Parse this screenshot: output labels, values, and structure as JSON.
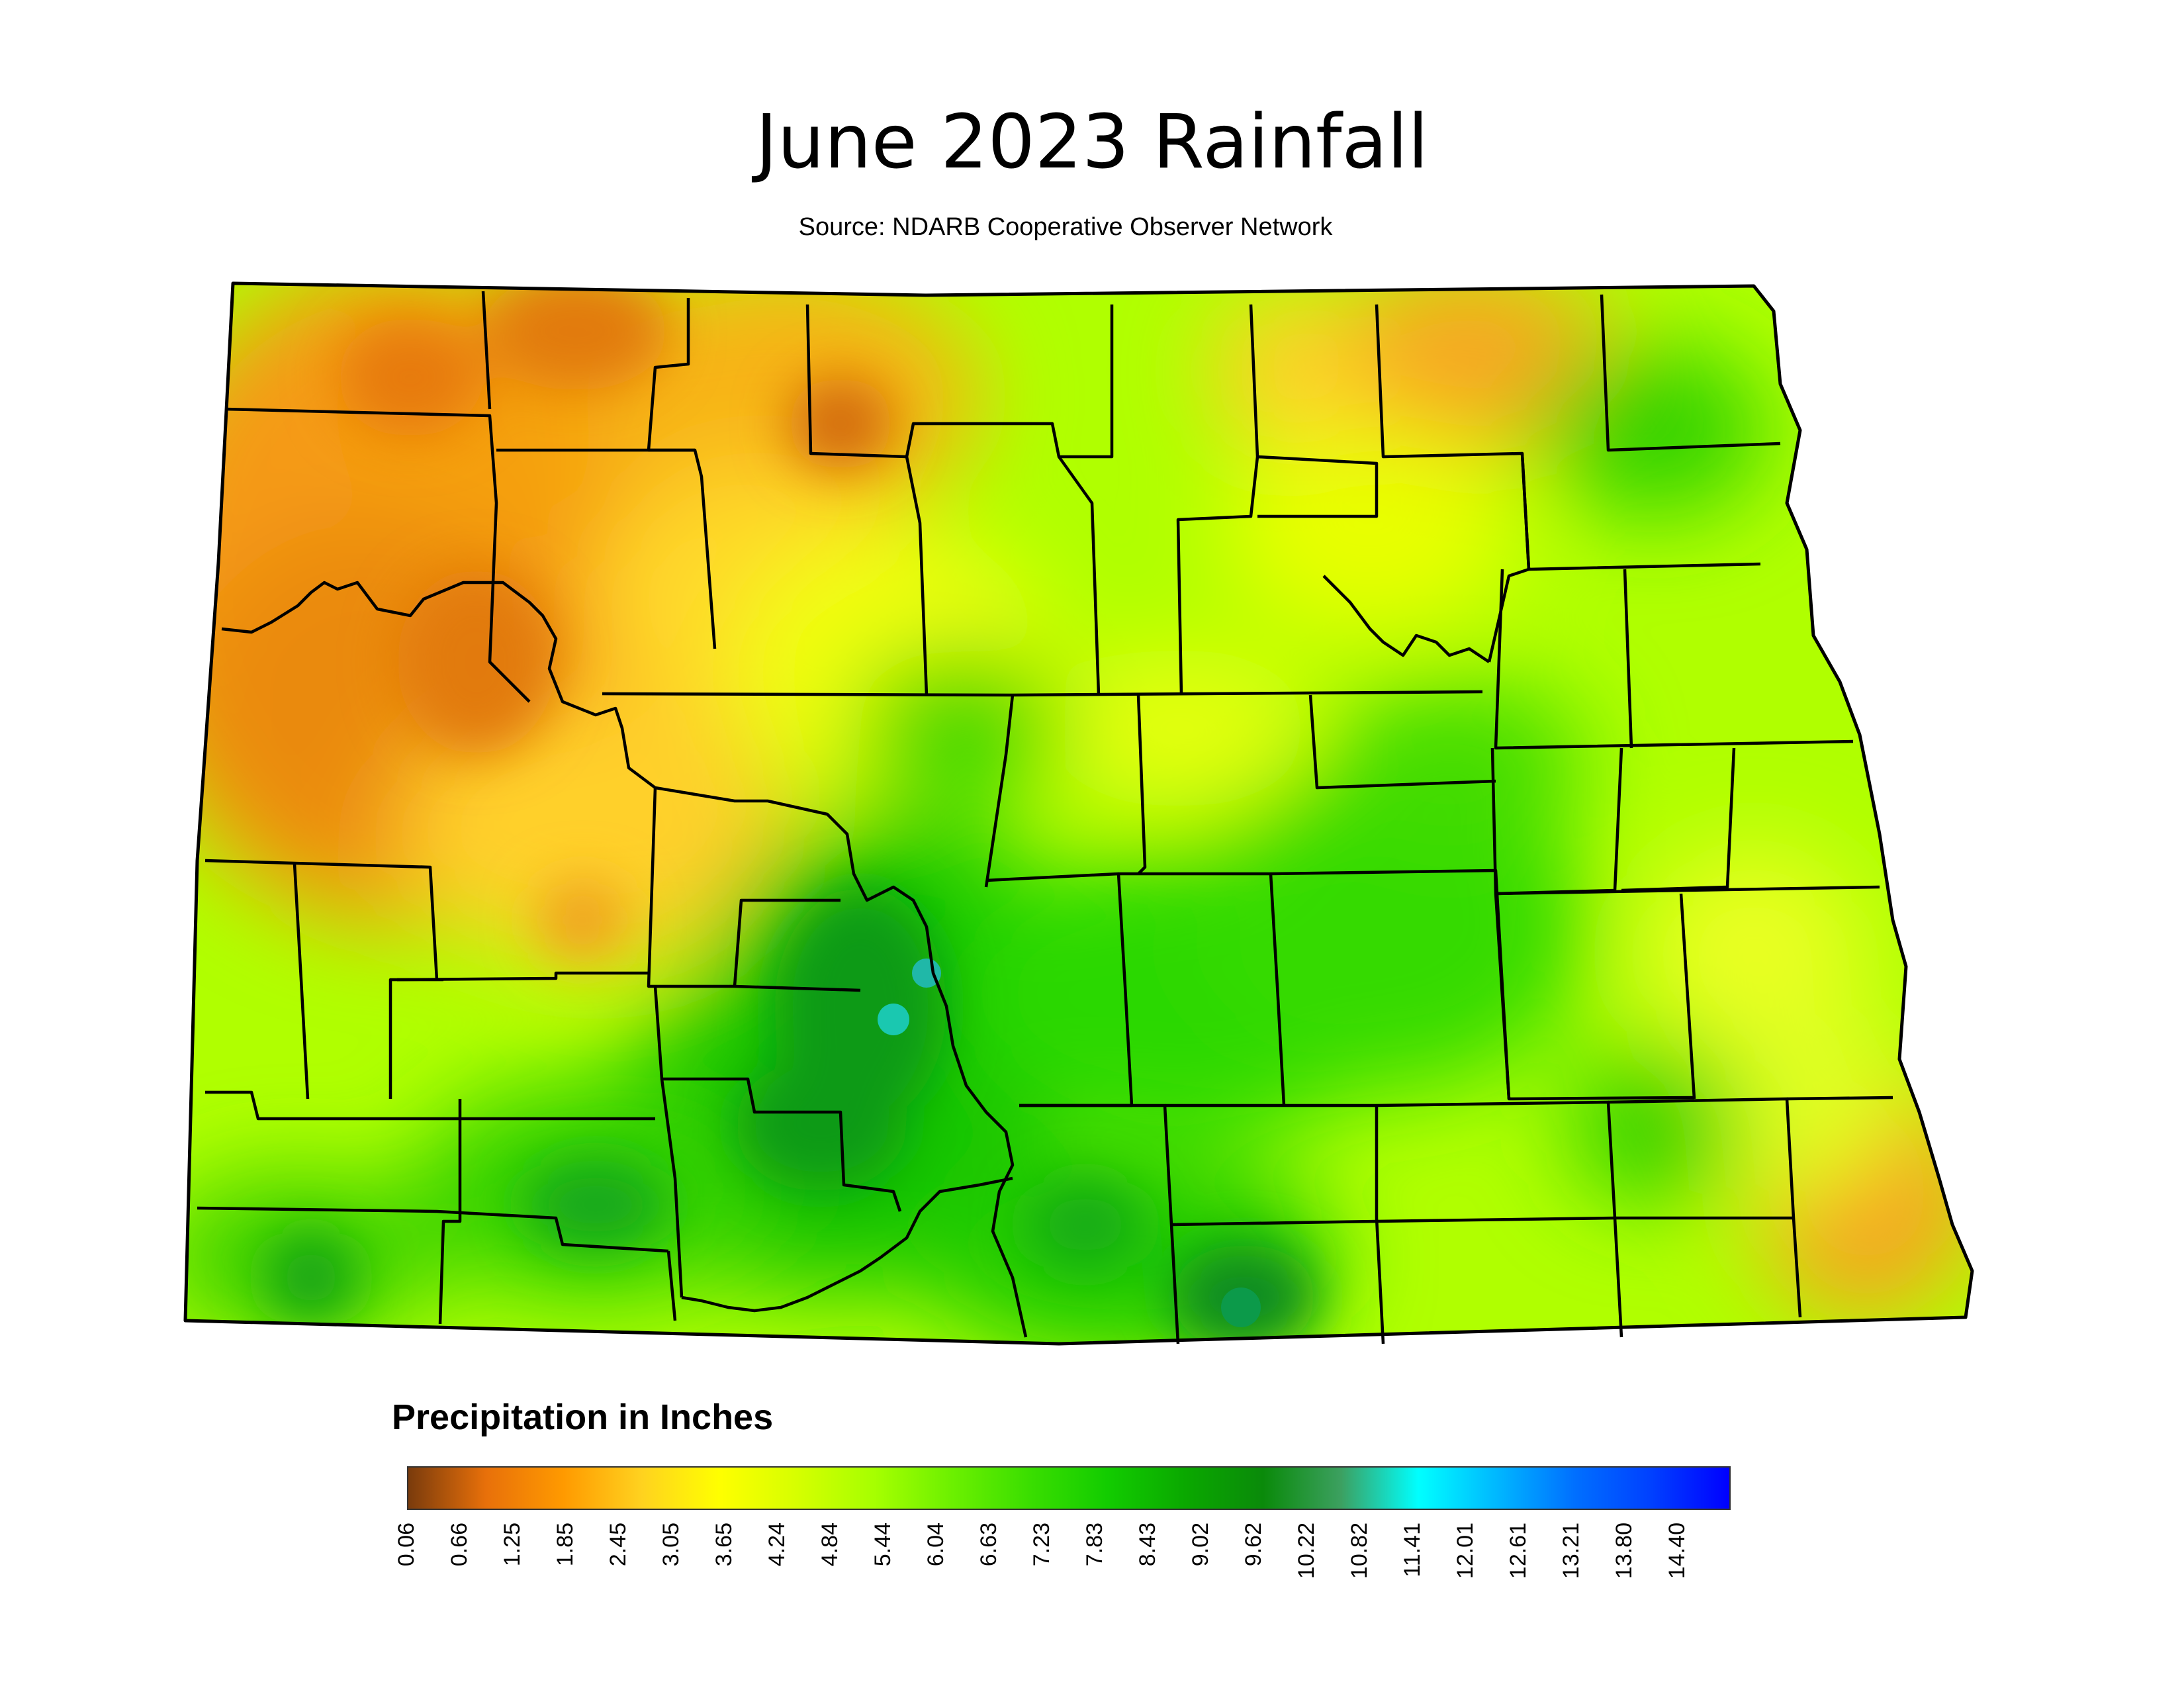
{
  "title": "June 2023 Rainfall",
  "subtitle": "Source: NDARB Cooperative Observer Network",
  "legend": {
    "title": "Precipitation in Inches",
    "ticks": [
      "0.06",
      "0.66",
      "1.25",
      "1.85",
      "2.45",
      "3.05",
      "3.65",
      "4.24",
      "4.84",
      "5.44",
      "6.04",
      "6.63",
      "7.23",
      "7.83",
      "8.43",
      "9.02",
      "9.62",
      "10.22",
      "10.82",
      "11.41",
      "12.01",
      "12.61",
      "13.21",
      "13.80",
      "14.40"
    ],
    "colors": [
      "#7a3b0c",
      "#e8700a",
      "#ff9a00",
      "#ffd21f",
      "#ffff00",
      "#d6ff00",
      "#a6ff00",
      "#6cf000",
      "#3ade00",
      "#12cc00",
      "#0aa800",
      "#0a8a0a",
      "#3ca060",
      "#00ffff",
      "#00b8ff",
      "#0070ff",
      "#0040ff",
      "#0000ff"
    ]
  },
  "colors": {
    "border": "#000000",
    "dry": "#e87a10",
    "medium": "#ccff00",
    "wet": "#1ed000",
    "very_wet": "#0a8a2a"
  }
}
